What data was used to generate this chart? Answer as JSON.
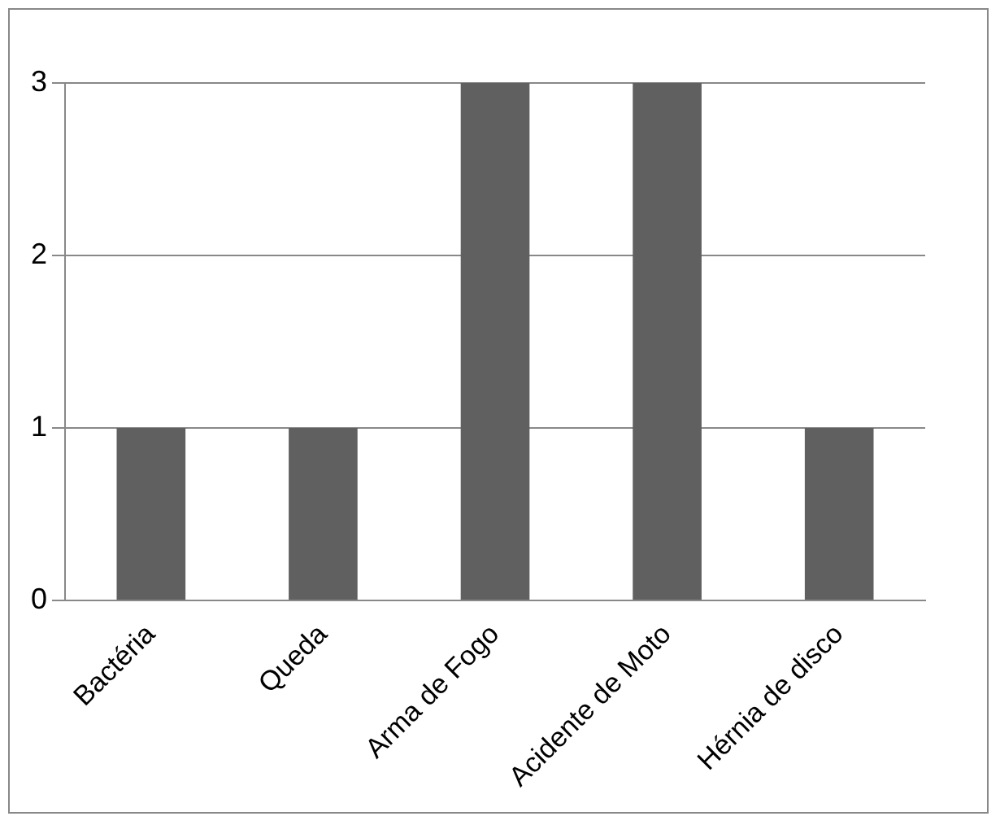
{
  "chart_data": {
    "type": "bar",
    "categories": [
      "Bactéria",
      "Queda",
      "Arma de Fogo",
      "Acidente de Moto",
      "Hérnia de disco"
    ],
    "values": [
      1,
      1,
      3,
      3,
      1
    ],
    "color": "#606060",
    "ylim": [
      0,
      3
    ],
    "yticks": [
      0,
      1,
      2,
      3
    ],
    "grid": "y",
    "legend": false
  }
}
